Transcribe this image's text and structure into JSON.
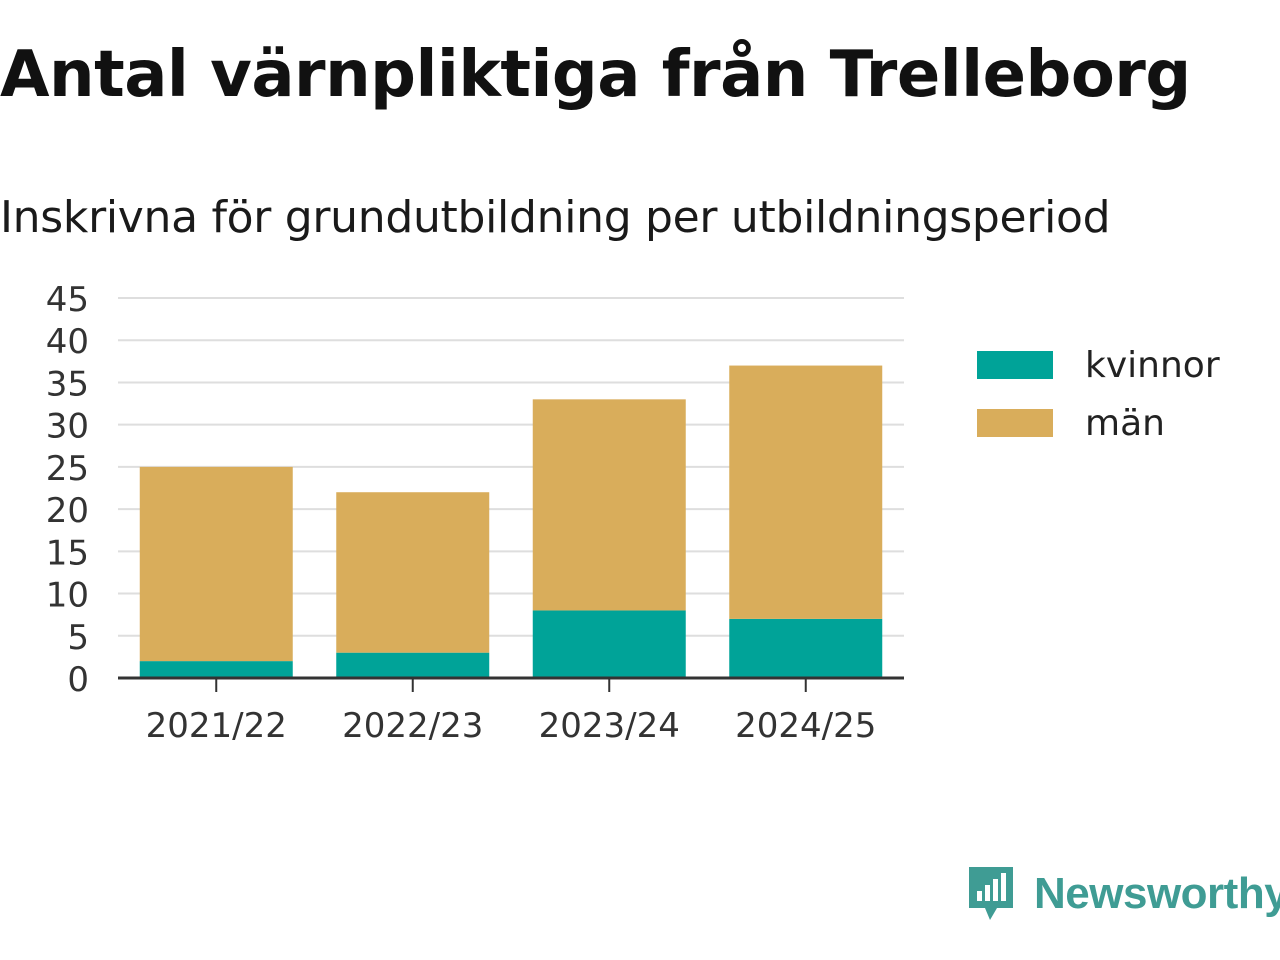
{
  "title": "Antal värnpliktiga från Trelleborg",
  "subtitle": "Inskrivna för grundutbildning per utbildningsperiod",
  "brand": {
    "name": "Newsworthy",
    "color": "#3f9c94",
    "icon": "newsworthy-logo-icon"
  },
  "legend": {
    "items": [
      {
        "label": "kvinnor",
        "color": "#00a398"
      },
      {
        "label": "män",
        "color": "#d9ad5b"
      }
    ]
  },
  "chart_data": {
    "type": "bar",
    "stacked": true,
    "title": "Antal värnpliktiga från Trelleborg",
    "subtitle": "Inskrivna för grundutbildning per utbildningsperiod",
    "xlabel": "",
    "ylabel": "",
    "categories": [
      "2021/22",
      "2022/23",
      "2023/24",
      "2024/25"
    ],
    "series": [
      {
        "name": "kvinnor",
        "color": "#00a398",
        "values": [
          2,
          3,
          8,
          7
        ]
      },
      {
        "name": "män",
        "color": "#d9ad5b",
        "values": [
          23,
          19,
          25,
          30
        ]
      }
    ],
    "ylim": [
      0,
      45
    ],
    "yticks": [
      0,
      5,
      10,
      15,
      20,
      25,
      30,
      35,
      40,
      45
    ],
    "grid": true,
    "legend_position": "right"
  }
}
